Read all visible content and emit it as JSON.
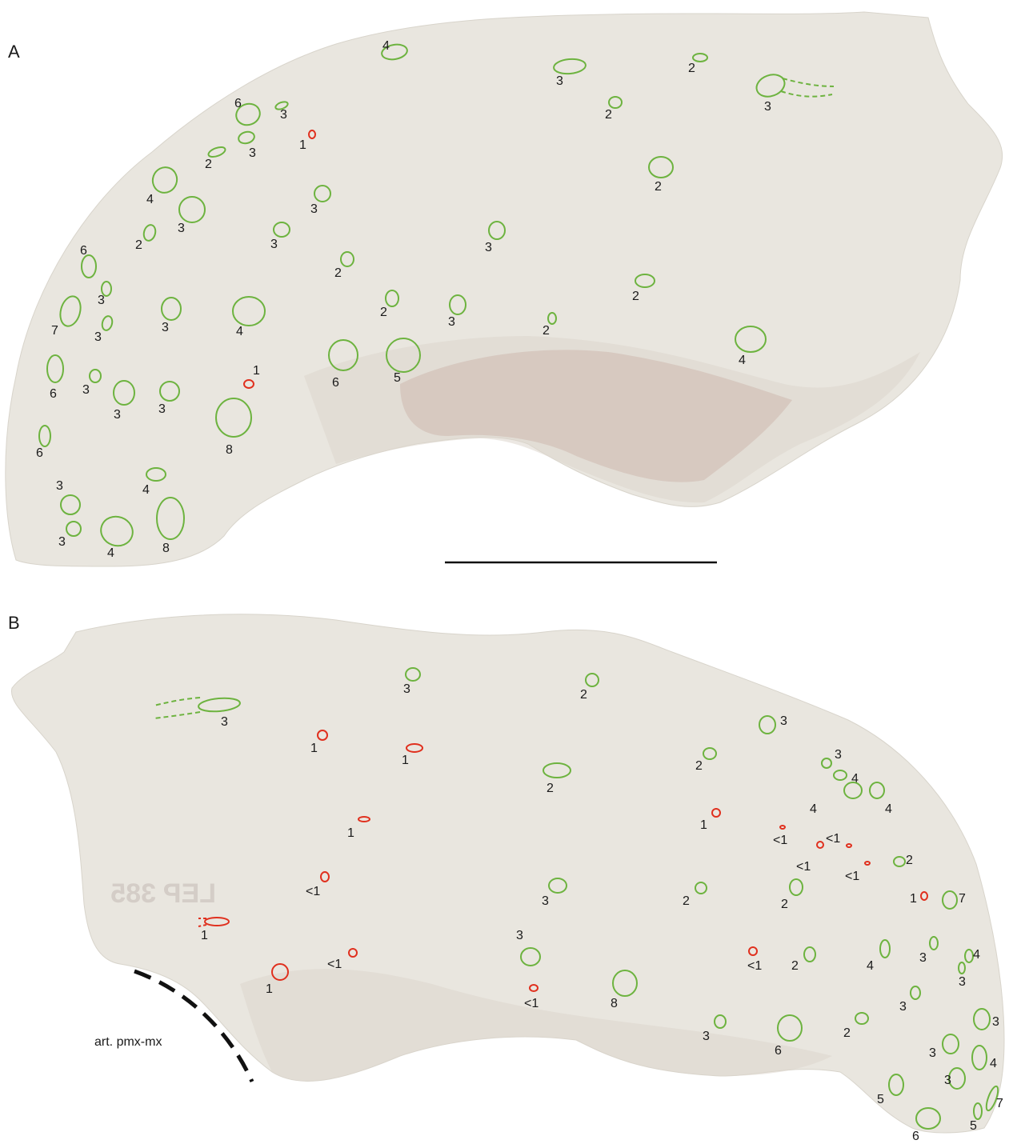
{
  "panels": [
    {
      "letter": "A",
      "foramina": [
        {
          "label": "4",
          "c": "g"
        },
        {
          "label": "3",
          "c": "g"
        },
        {
          "label": "2",
          "c": "g"
        },
        {
          "label": "3",
          "c": "g"
        },
        {
          "label": "6",
          "c": "g"
        },
        {
          "label": "3",
          "c": "g"
        },
        {
          "label": "1",
          "c": "r"
        },
        {
          "label": "3",
          "c": "g"
        },
        {
          "label": "2",
          "c": "g"
        },
        {
          "label": "2",
          "c": "g"
        },
        {
          "label": "4",
          "c": "g"
        },
        {
          "label": "3",
          "c": "g"
        },
        {
          "label": "3",
          "c": "g"
        },
        {
          "label": "2",
          "c": "g"
        },
        {
          "label": "3",
          "c": "g"
        },
        {
          "label": "3",
          "c": "g"
        },
        {
          "label": "6",
          "c": "g"
        },
        {
          "label": "2",
          "c": "g"
        },
        {
          "label": "2",
          "c": "g"
        },
        {
          "label": "3",
          "c": "g"
        },
        {
          "label": "7",
          "c": "g"
        },
        {
          "label": "3",
          "c": "g"
        },
        {
          "label": "3",
          "c": "g"
        },
        {
          "label": "4",
          "c": "g"
        },
        {
          "label": "2",
          "c": "g"
        },
        {
          "label": "3",
          "c": "g"
        },
        {
          "label": "2",
          "c": "g"
        },
        {
          "label": "4",
          "c": "g"
        },
        {
          "label": "6",
          "c": "g"
        },
        {
          "label": "3",
          "c": "g"
        },
        {
          "label": "3",
          "c": "g"
        },
        {
          "label": "3",
          "c": "g"
        },
        {
          "label": "1",
          "c": "r"
        },
        {
          "label": "6",
          "c": "g"
        },
        {
          "label": "5",
          "c": "g"
        },
        {
          "label": "8",
          "c": "g"
        },
        {
          "label": "6",
          "c": "g"
        },
        {
          "label": "4",
          "c": "g"
        },
        {
          "label": "3",
          "c": "g"
        },
        {
          "label": "3",
          "c": "g"
        },
        {
          "label": "4",
          "c": "g"
        },
        {
          "label": "8",
          "c": "g"
        },
        {
          "label": "2",
          "c": "g"
        }
      ]
    },
    {
      "letter": "B",
      "foramina": [
        {
          "label": "3",
          "c": "g"
        },
        {
          "label": "2",
          "c": "g"
        },
        {
          "label": "3",
          "c": "g"
        },
        {
          "label": "1",
          "c": "r"
        },
        {
          "label": "1",
          "c": "r"
        },
        {
          "label": "2",
          "c": "g"
        },
        {
          "label": "3",
          "c": "g"
        },
        {
          "label": "2",
          "c": "g"
        },
        {
          "label": "3",
          "c": "g"
        },
        {
          "label": "4",
          "c": "g"
        },
        {
          "label": "1",
          "c": "r"
        },
        {
          "label": "4",
          "c": "g"
        },
        {
          "label": "4",
          "c": "g"
        },
        {
          "label": "1",
          "c": "r"
        },
        {
          "label": "<1",
          "c": "r"
        },
        {
          "label": "<1",
          "c": "r"
        },
        {
          "label": "<1",
          "c": "r"
        },
        {
          "label": "<1",
          "c": "r"
        },
        {
          "label": "2",
          "c": "g"
        },
        {
          "label": "<1",
          "c": "r"
        },
        {
          "label": "3",
          "c": "g"
        },
        {
          "label": "2",
          "c": "g"
        },
        {
          "label": "2",
          "c": "g"
        },
        {
          "label": "1",
          "c": "r"
        },
        {
          "label": "7",
          "c": "g"
        },
        {
          "label": "1",
          "c": "r"
        },
        {
          "label": "<1",
          "c": "r"
        },
        {
          "label": "1",
          "c": "r"
        },
        {
          "label": "3",
          "c": "g"
        },
        {
          "label": "<1",
          "c": "r"
        },
        {
          "label": "8",
          "c": "g"
        },
        {
          "label": "<1",
          "c": "r"
        },
        {
          "label": "2",
          "c": "g"
        },
        {
          "label": "4",
          "c": "g"
        },
        {
          "label": "3",
          "c": "g"
        },
        {
          "label": "4",
          "c": "g"
        },
        {
          "label": "3",
          "c": "g"
        },
        {
          "label": "3",
          "c": "g"
        },
        {
          "label": "3",
          "c": "g"
        },
        {
          "label": "6",
          "c": "g"
        },
        {
          "label": "2",
          "c": "g"
        },
        {
          "label": "3",
          "c": "g"
        },
        {
          "label": "3",
          "c": "g"
        },
        {
          "label": "4",
          "c": "g"
        },
        {
          "label": "3",
          "c": "g"
        },
        {
          "label": "5",
          "c": "g"
        },
        {
          "label": "7",
          "c": "g"
        },
        {
          "label": "5",
          "c": "g"
        },
        {
          "label": "6",
          "c": "g"
        }
      ]
    }
  ],
  "articulation_label": "art. pmx-mx",
  "specimen_number": "LEP 385",
  "colors": {
    "green": "#6db33f",
    "red": "#e0301e",
    "bone": "#e9e6df"
  }
}
